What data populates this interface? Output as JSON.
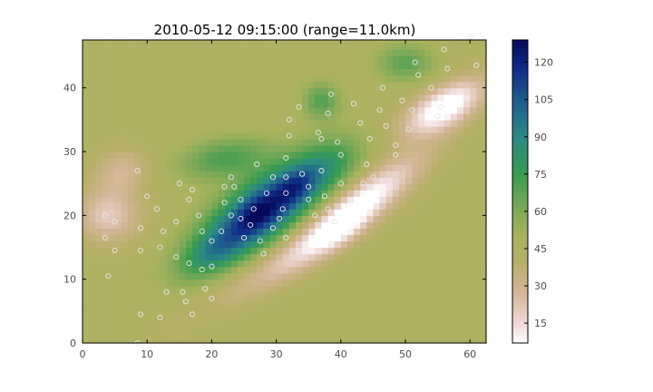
{
  "chart_data": {
    "type": "heatmap",
    "title": "2010-05-12 09:15:00 (range=11.0km)",
    "xlabel": "",
    "ylabel": "",
    "xlim": [
      0,
      62.5
    ],
    "ylim": [
      0,
      47.5
    ],
    "xticks": [
      0,
      10,
      20,
      30,
      40,
      50,
      60
    ],
    "yticks": [
      0,
      10,
      20,
      30,
      40
    ],
    "colorbar": {
      "range": [
        7,
        129
      ],
      "ticks": [
        15,
        30,
        45,
        60,
        75,
        90,
        105,
        120
      ],
      "colors": [
        {
          "v": 7,
          "c": "#ffffff"
        },
        {
          "v": 15,
          "c": "#eed9d7"
        },
        {
          "v": 28,
          "c": "#d2b594"
        },
        {
          "v": 40,
          "c": "#b8b06a"
        },
        {
          "v": 50,
          "c": "#a9b25e"
        },
        {
          "v": 62,
          "c": "#79a957"
        },
        {
          "v": 75,
          "c": "#399c4f"
        },
        {
          "v": 90,
          "c": "#2a8a83"
        },
        {
          "v": 105,
          "c": "#1e5b8e"
        },
        {
          "v": 118,
          "c": "#102a85"
        },
        {
          "v": 129,
          "c": "#070a5c"
        }
      ]
    },
    "field": {
      "background": 46,
      "features": [
        {
          "x": 28,
          "y": 21,
          "sx": 8,
          "sy": 3.2,
          "angle": 36,
          "amp": 72
        },
        {
          "x": 33,
          "y": 24.5,
          "sx": 2.5,
          "sy": 1.6,
          "angle": 40,
          "amp": 18
        },
        {
          "x": 27,
          "y": 20,
          "sx": 2.5,
          "sy": 1.6,
          "angle": 40,
          "amp": 14
        },
        {
          "x": 20,
          "y": 14,
          "sx": 4,
          "sy": 2,
          "angle": 30,
          "amp": 22
        },
        {
          "x": 22,
          "y": 29,
          "sx": 5,
          "sy": 2.2,
          "angle": 10,
          "amp": 25
        },
        {
          "x": 38,
          "y": 28,
          "sx": 4,
          "sy": 2.5,
          "angle": 30,
          "amp": 18
        },
        {
          "x": 37,
          "y": 38,
          "sx": 2,
          "sy": 2,
          "angle": 0,
          "amp": 24
        },
        {
          "x": 50,
          "y": 44,
          "sx": 3,
          "sy": 2,
          "angle": 0,
          "amp": 22
        },
        {
          "x": 42,
          "y": 21,
          "sx": 9,
          "sy": 2.2,
          "angle": 38,
          "amp": -44
        },
        {
          "x": 40,
          "y": 18,
          "sx": 3,
          "sy": 1.5,
          "angle": 40,
          "amp": -12
        },
        {
          "x": 56,
          "y": 37,
          "sx": 5,
          "sy": 2.2,
          "angle": 30,
          "amp": -45
        },
        {
          "x": 4,
          "y": 20,
          "sx": 3.5,
          "sy": 3,
          "angle": 0,
          "amp": -26
        },
        {
          "x": 6,
          "y": 27,
          "sx": 3,
          "sy": 2.5,
          "angle": 20,
          "amp": -18
        },
        {
          "x": 30,
          "y": 12,
          "sx": 10,
          "sy": 2,
          "angle": 30,
          "amp": -14
        }
      ]
    },
    "stations": [
      [
        8.5,
        27
      ],
      [
        10,
        23
      ],
      [
        11.5,
        21
      ],
      [
        15,
        25
      ],
      [
        17,
        24
      ],
      [
        16.5,
        22.5
      ],
      [
        3.5,
        20
      ],
      [
        3.5,
        16.5
      ],
      [
        5,
        19
      ],
      [
        5,
        14.5
      ],
      [
        4,
        10.5
      ],
      [
        9,
        18
      ],
      [
        12.5,
        17.5
      ],
      [
        14.5,
        19
      ],
      [
        12,
        15
      ],
      [
        9,
        14.5
      ],
      [
        14.5,
        13.5
      ],
      [
        16.5,
        12.5
      ],
      [
        18.5,
        11.5
      ],
      [
        20,
        12
      ],
      [
        13,
        8
      ],
      [
        15.5,
        8
      ],
      [
        16,
        6.5
      ],
      [
        19,
        8.5
      ],
      [
        20,
        7
      ],
      [
        17,
        4.5
      ],
      [
        9,
        4.5
      ],
      [
        12,
        4
      ],
      [
        8.5,
        0
      ],
      [
        18,
        20
      ],
      [
        18.5,
        17.5
      ],
      [
        20,
        16
      ],
      [
        21.5,
        17.5
      ],
      [
        22,
        22
      ],
      [
        23,
        26
      ],
      [
        22,
        24.5
      ],
      [
        23.5,
        24.5
      ],
      [
        24.5,
        22.5
      ],
      [
        23,
        20
      ],
      [
        24.5,
        19.5
      ],
      [
        25,
        16.5
      ],
      [
        26,
        18.5
      ],
      [
        26.5,
        21
      ],
      [
        27,
        28
      ],
      [
        27.5,
        16
      ],
      [
        28,
        14
      ],
      [
        28.5,
        23.5
      ],
      [
        29.5,
        26
      ],
      [
        29.5,
        18
      ],
      [
        30.5,
        19.5
      ],
      [
        31,
        21
      ],
      [
        31.5,
        23.5
      ],
      [
        31.5,
        26
      ],
      [
        31.5,
        29
      ],
      [
        32,
        32.5
      ],
      [
        32,
        35
      ],
      [
        31.5,
        16.5
      ],
      [
        33.5,
        37
      ],
      [
        34,
        26.5
      ],
      [
        35,
        24.5
      ],
      [
        35,
        22.5
      ],
      [
        36,
        20
      ],
      [
        36.5,
        33
      ],
      [
        37,
        32
      ],
      [
        37,
        27
      ],
      [
        38,
        36
      ],
      [
        38.5,
        39
      ],
      [
        37.5,
        23
      ],
      [
        38,
        21
      ],
      [
        39,
        19
      ],
      [
        39.5,
        31.5
      ],
      [
        40,
        29.5
      ],
      [
        40,
        25
      ],
      [
        42,
        37.5
      ],
      [
        43,
        34.5
      ],
      [
        43.5,
        25
      ],
      [
        44,
        28
      ],
      [
        44.5,
        32
      ],
      [
        45,
        26
      ],
      [
        46,
        36.5
      ],
      [
        46.5,
        40
      ],
      [
        47,
        34
      ],
      [
        48.5,
        29.5
      ],
      [
        48.5,
        31
      ],
      [
        49.5,
        38
      ],
      [
        50.5,
        33.5
      ],
      [
        51,
        36.5
      ],
      [
        51.5,
        44
      ],
      [
        52,
        42
      ],
      [
        54,
        40
      ],
      [
        55,
        35.5
      ],
      [
        55.5,
        37
      ],
      [
        56,
        46
      ],
      [
        56.5,
        43
      ],
      [
        60,
        48
      ],
      [
        61,
        43.5
      ]
    ]
  }
}
